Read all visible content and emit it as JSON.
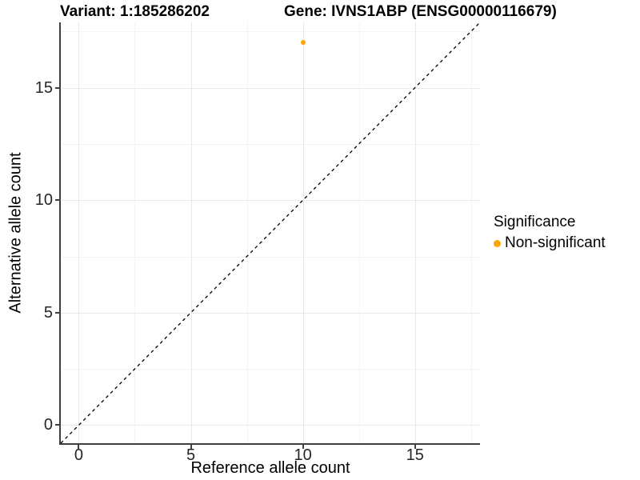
{
  "titles": {
    "variant": "Variant: 1:185286202",
    "gene": "Gene: IVNS1ABP (ENSG00000116679)"
  },
  "legend": {
    "title": "Significance",
    "items": [
      {
        "label": "Non-significant",
        "color": "#FFA500",
        "marker": "circle"
      }
    ]
  },
  "colors": {
    "point_orange": "#FFA500",
    "grid_major": "#e8e8e8",
    "grid_minor": "#f4f4f4",
    "axis_line": "#404040",
    "reference_line": "#000000",
    "background": "#ffffff"
  },
  "chart_data": {
    "type": "scatter",
    "title_left": "Variant: 1:185286202",
    "title_right": "Gene: IVNS1ABP (ENSG00000116679)",
    "xlabel": "Reference allele count",
    "ylabel": "Alternative allele count",
    "xlim": [
      -0.8,
      17.9
    ],
    "ylim": [
      -0.8,
      17.9
    ],
    "x_major_ticks": [
      0,
      5,
      10,
      15
    ],
    "y_major_ticks": [
      0,
      5,
      10,
      15
    ],
    "x_minor_ticks": [
      2.5,
      7.5,
      12.5,
      17.5
    ],
    "y_minor_ticks": [
      2.5,
      7.5,
      12.5,
      17.5
    ],
    "grid": true,
    "legend_position": "right",
    "points": [
      {
        "x": 10,
        "y": 17,
        "series": "Non-significant",
        "color": "#FFA500"
      }
    ],
    "reference_line": {
      "type": "identity",
      "style": "dashed",
      "color": "#000000",
      "label": "y = x"
    }
  }
}
